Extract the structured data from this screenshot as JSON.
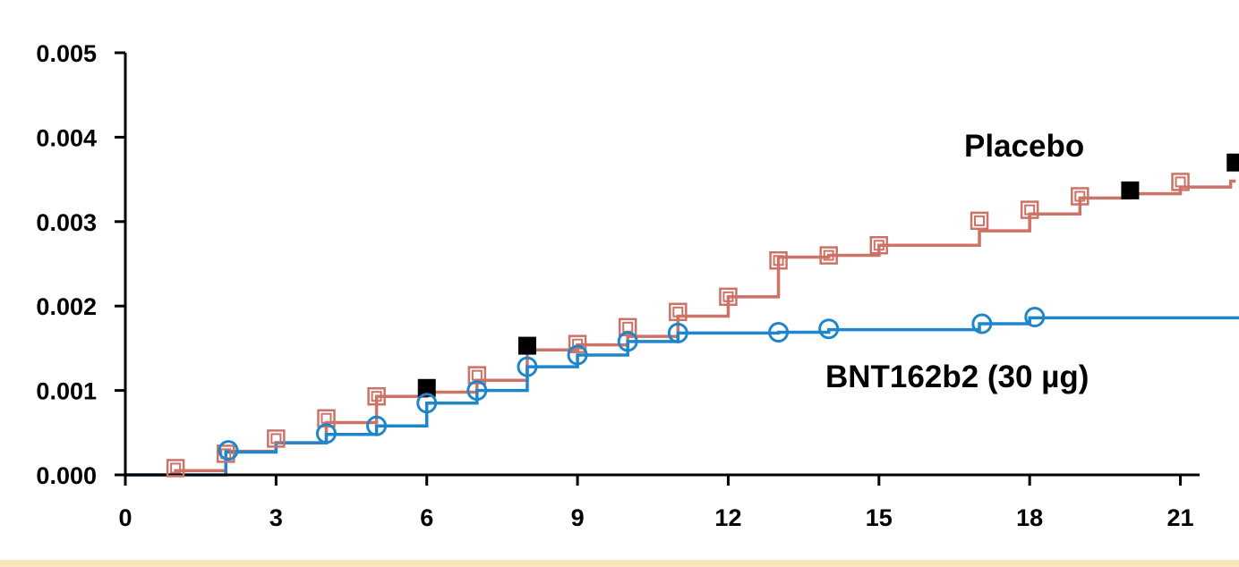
{
  "chart_data": {
    "type": "line",
    "step": true,
    "xlim": [
      0,
      22.4
    ],
    "ylim": [
      0,
      0.005
    ],
    "xticks": [
      0,
      3,
      6,
      9,
      12,
      15,
      18,
      21
    ],
    "xtick_labels": [
      "0",
      "3",
      "6",
      "9",
      "12",
      "15",
      "18",
      "21"
    ],
    "yticks": [
      0,
      0.001,
      0.002,
      0.003,
      0.004,
      0.005
    ],
    "ytick_labels": [
      "0.000",
      "0.001",
      "0.002",
      "0.003",
      "0.004",
      "0.005"
    ],
    "grid": false,
    "series": [
      {
        "name": "BNT162b2 (30 µg)",
        "color": "#1f86cc",
        "marker": "open-circle",
        "steps": [
          [
            0,
            0
          ],
          [
            2,
            0.00027
          ],
          [
            3,
            0.00038
          ],
          [
            4,
            0.00048
          ],
          [
            5,
            0.00058
          ],
          [
            6,
            0.00085
          ],
          [
            7,
            0.001
          ],
          [
            8,
            0.00128
          ],
          [
            9,
            0.00142
          ],
          [
            10,
            0.00158
          ],
          [
            11,
            0.00168
          ],
          [
            13,
            0.00169
          ],
          [
            14,
            0.00172
          ],
          [
            17,
            0.00179
          ],
          [
            18,
            0.00186
          ]
        ],
        "end_x": 22.3,
        "censor_marks": [
          [
            2.05,
            0.00029
          ],
          [
            4,
            0.00049
          ],
          [
            5,
            0.00058
          ],
          [
            6,
            0.00085
          ],
          [
            7,
            0.001
          ],
          [
            8,
            0.00128
          ],
          [
            9,
            0.00142
          ],
          [
            10,
            0.00158
          ],
          [
            11,
            0.00168
          ],
          [
            13,
            0.00169
          ],
          [
            14,
            0.00173
          ],
          [
            17.05,
            0.00179
          ],
          [
            18.1,
            0.00187
          ]
        ]
      },
      {
        "name": "Placebo",
        "color": "#cc7266",
        "marker": "open-square",
        "steps": [
          [
            0,
            0
          ],
          [
            1,
            5e-05
          ],
          [
            2,
            0.00028
          ],
          [
            3,
            0.00038
          ],
          [
            4,
            0.00062
          ],
          [
            5,
            0.00093
          ],
          [
            6,
            0.00098
          ],
          [
            7,
            0.00112
          ],
          [
            8,
            0.00148
          ],
          [
            9,
            0.00154
          ],
          [
            10,
            0.00164
          ],
          [
            11,
            0.00188
          ],
          [
            12,
            0.00211
          ],
          [
            13,
            0.00258
          ],
          [
            14,
            0.0026
          ],
          [
            15,
            0.00272
          ],
          [
            17,
            0.00289
          ],
          [
            18,
            0.00309
          ],
          [
            19,
            0.00328
          ],
          [
            20,
            0.00333
          ],
          [
            21,
            0.00341
          ],
          [
            22,
            0.00348
          ]
        ],
        "end_x": 22.1,
        "censor_marks": [
          [
            1,
            8e-05
          ],
          [
            2,
            0.00025
          ],
          [
            3,
            0.00043
          ],
          [
            4,
            0.00067
          ],
          [
            5,
            0.00093
          ],
          [
            7,
            0.00118
          ],
          [
            9,
            0.00155
          ],
          [
            10,
            0.00175
          ],
          [
            11,
            0.00193
          ],
          [
            12,
            0.00211
          ],
          [
            13,
            0.00254
          ],
          [
            14,
            0.0026
          ],
          [
            15,
            0.00272
          ],
          [
            17,
            0.00301
          ],
          [
            18,
            0.00314
          ],
          [
            19,
            0.0033
          ],
          [
            21,
            0.00347
          ]
        ],
        "filled_marks": [
          [
            6,
            0.00103
          ],
          [
            8,
            0.00153
          ],
          [
            20,
            0.00337
          ],
          [
            22.1,
            0.0037
          ]
        ]
      }
    ],
    "annotations": [
      {
        "text": "Placebo",
        "series": "Placebo"
      },
      {
        "text": "BNT162b2 (30 µg)",
        "series": "BNT162b2 (30 µg)"
      }
    ]
  }
}
